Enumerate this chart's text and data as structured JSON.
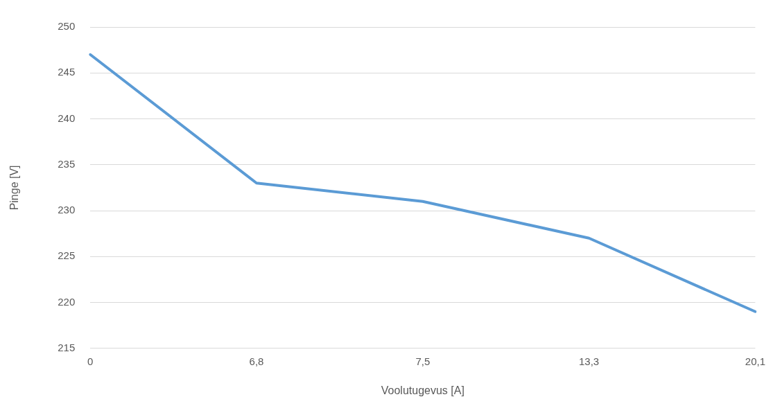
{
  "chart_data": {
    "type": "line",
    "xlabel": "Voolutugevus [A]",
    "ylabel": "Pinge [V]",
    "categories": [
      "0",
      "6,8",
      "7,5",
      "13,3",
      "20,1"
    ],
    "series": [
      {
        "color": "#5b9bd5",
        "values": [
          247,
          233,
          231,
          227,
          219
        ]
      }
    ],
    "ylim": [
      215,
      250
    ],
    "yticks": [
      215,
      220,
      225,
      230,
      235,
      240,
      245,
      250
    ],
    "grid": "y"
  }
}
